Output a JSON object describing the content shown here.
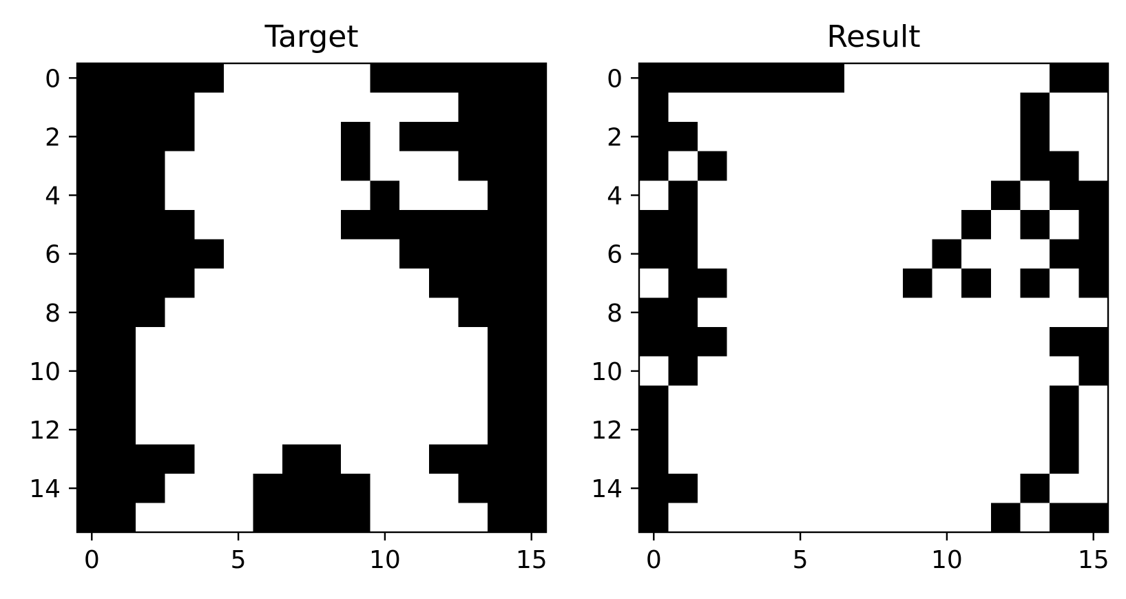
{
  "chart_data": [
    {
      "type": "heatmap",
      "title": "Target",
      "xlabel": "",
      "ylabel": "",
      "xlim": [
        -0.5,
        15.5
      ],
      "ylim": [
        15.5,
        -0.5
      ],
      "xticks": [
        0,
        5,
        10,
        15
      ],
      "yticks": [
        0,
        2,
        4,
        6,
        8,
        10,
        12,
        14
      ],
      "colormap": {
        "0": "#000000",
        "1": "#ffffff"
      },
      "grid": [
        [
          0,
          0,
          0,
          0,
          0,
          1,
          1,
          1,
          1,
          1,
          0,
          0,
          0,
          0,
          0,
          0
        ],
        [
          0,
          0,
          0,
          0,
          1,
          1,
          1,
          1,
          1,
          1,
          1,
          1,
          1,
          0,
          0,
          0
        ],
        [
          0,
          0,
          0,
          0,
          1,
          1,
          1,
          1,
          1,
          0,
          1,
          0,
          0,
          0,
          0,
          0
        ],
        [
          0,
          0,
          0,
          1,
          1,
          1,
          1,
          1,
          1,
          0,
          1,
          1,
          1,
          0,
          0,
          0
        ],
        [
          0,
          0,
          0,
          1,
          1,
          1,
          1,
          1,
          1,
          1,
          0,
          1,
          1,
          1,
          0,
          0
        ],
        [
          0,
          0,
          0,
          0,
          1,
          1,
          1,
          1,
          1,
          0,
          0,
          0,
          0,
          0,
          0,
          0
        ],
        [
          0,
          0,
          0,
          0,
          0,
          1,
          1,
          1,
          1,
          1,
          1,
          0,
          0,
          0,
          0,
          0
        ],
        [
          0,
          0,
          0,
          0,
          1,
          1,
          1,
          1,
          1,
          1,
          1,
          1,
          0,
          0,
          0,
          0
        ],
        [
          0,
          0,
          0,
          1,
          1,
          1,
          1,
          1,
          1,
          1,
          1,
          1,
          1,
          0,
          0,
          0
        ],
        [
          0,
          0,
          1,
          1,
          1,
          1,
          1,
          1,
          1,
          1,
          1,
          1,
          1,
          1,
          0,
          0
        ],
        [
          0,
          0,
          1,
          1,
          1,
          1,
          1,
          1,
          1,
          1,
          1,
          1,
          1,
          1,
          0,
          0
        ],
        [
          0,
          0,
          1,
          1,
          1,
          1,
          1,
          1,
          1,
          1,
          1,
          1,
          1,
          1,
          0,
          0
        ],
        [
          0,
          0,
          1,
          1,
          1,
          1,
          1,
          1,
          1,
          1,
          1,
          1,
          1,
          1,
          0,
          0
        ],
        [
          0,
          0,
          0,
          0,
          1,
          1,
          1,
          0,
          0,
          1,
          1,
          1,
          0,
          0,
          0,
          0
        ],
        [
          0,
          0,
          0,
          1,
          1,
          1,
          0,
          0,
          0,
          0,
          1,
          1,
          1,
          0,
          0,
          0
        ],
        [
          0,
          0,
          1,
          1,
          1,
          1,
          0,
          0,
          0,
          0,
          1,
          1,
          1,
          1,
          0,
          0
        ]
      ]
    },
    {
      "type": "heatmap",
      "title": "Result",
      "xlabel": "",
      "ylabel": "",
      "xlim": [
        -0.5,
        15.5
      ],
      "ylim": [
        15.5,
        -0.5
      ],
      "xticks": [
        0,
        5,
        10,
        15
      ],
      "yticks": [
        0,
        2,
        4,
        6,
        8,
        10,
        12,
        14
      ],
      "colormap": {
        "0": "#000000",
        "1": "#ffffff"
      },
      "grid": [
        [
          0,
          0,
          0,
          0,
          0,
          0,
          0,
          1,
          1,
          1,
          1,
          1,
          1,
          1,
          0,
          0
        ],
        [
          0,
          1,
          1,
          1,
          1,
          1,
          1,
          1,
          1,
          1,
          1,
          1,
          1,
          0,
          1,
          1
        ],
        [
          0,
          0,
          1,
          1,
          1,
          1,
          1,
          1,
          1,
          1,
          1,
          1,
          1,
          0,
          1,
          1
        ],
        [
          0,
          1,
          0,
          1,
          1,
          1,
          1,
          1,
          1,
          1,
          1,
          1,
          1,
          0,
          0,
          1
        ],
        [
          1,
          0,
          1,
          1,
          1,
          1,
          1,
          1,
          1,
          1,
          1,
          1,
          0,
          1,
          0,
          0
        ],
        [
          0,
          0,
          1,
          1,
          1,
          1,
          1,
          1,
          1,
          1,
          1,
          0,
          1,
          0,
          1,
          0
        ],
        [
          0,
          0,
          1,
          1,
          1,
          1,
          1,
          1,
          1,
          1,
          0,
          1,
          1,
          1,
          0,
          0
        ],
        [
          1,
          0,
          0,
          1,
          1,
          1,
          1,
          1,
          1,
          0,
          1,
          0,
          1,
          0,
          1,
          0
        ],
        [
          0,
          0,
          1,
          1,
          1,
          1,
          1,
          1,
          1,
          1,
          1,
          1,
          1,
          1,
          1,
          1
        ],
        [
          0,
          0,
          0,
          1,
          1,
          1,
          1,
          1,
          1,
          1,
          1,
          1,
          1,
          1,
          0,
          0
        ],
        [
          1,
          0,
          1,
          1,
          1,
          1,
          1,
          1,
          1,
          1,
          1,
          1,
          1,
          1,
          1,
          0
        ],
        [
          0,
          1,
          1,
          1,
          1,
          1,
          1,
          1,
          1,
          1,
          1,
          1,
          1,
          1,
          0,
          1
        ],
        [
          0,
          1,
          1,
          1,
          1,
          1,
          1,
          1,
          1,
          1,
          1,
          1,
          1,
          1,
          0,
          1
        ],
        [
          0,
          1,
          1,
          1,
          1,
          1,
          1,
          1,
          1,
          1,
          1,
          1,
          1,
          1,
          0,
          1
        ],
        [
          0,
          0,
          1,
          1,
          1,
          1,
          1,
          1,
          1,
          1,
          1,
          1,
          1,
          0,
          1,
          1
        ],
        [
          0,
          1,
          1,
          1,
          1,
          1,
          1,
          1,
          1,
          1,
          1,
          1,
          0,
          1,
          0,
          0
        ]
      ]
    }
  ]
}
